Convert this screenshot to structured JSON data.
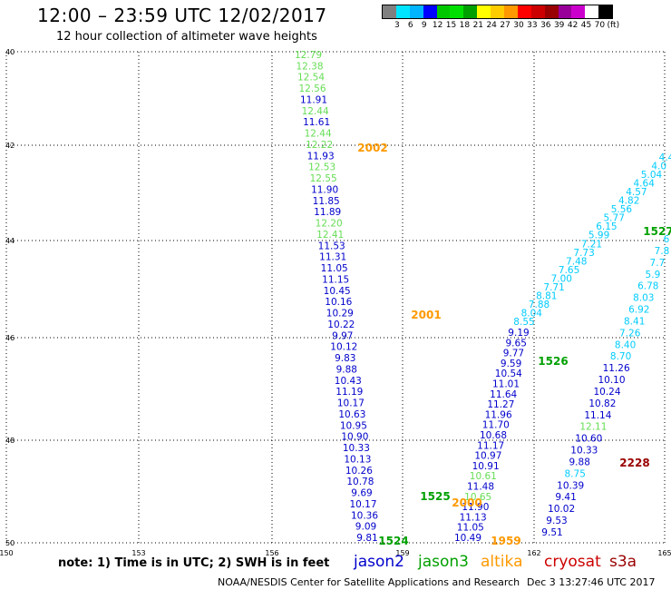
{
  "header": {
    "title": "12:00 – 23:59 UTC 12/02/2017",
    "subtitle": "12 hour collection of altimeter wave heights"
  },
  "colorbar": {
    "colors": [
      "#808080",
      "#00e5ff",
      "#00b4ff",
      "#0000ff",
      "#00c800",
      "#00e000",
      "#00a000",
      "#ffff00",
      "#ffcc00",
      "#ff9900",
      "#ff0000",
      "#cc0000",
      "#990000",
      "#990099",
      "#cc00cc",
      "#ffffff",
      "#000000"
    ],
    "labels": [
      "3",
      "6",
      "9",
      "12",
      "15",
      "18",
      "21",
      "24",
      "27",
      "30",
      "33",
      "36",
      "39",
      "42",
      "45",
      "70",
      "(ft)"
    ]
  },
  "map": {
    "lat_labels": [
      "40",
      "42",
      "44",
      "46",
      "48",
      "50"
    ],
    "lon_labels": [
      "150",
      "153",
      "156",
      "159",
      "162",
      "165"
    ],
    "colors": {
      "jason2": "#0000cc",
      "jason3": "#00a000",
      "altika": "#ff9900",
      "cryosat": "#cc0000",
      "s3a": "#990000",
      "light_green": "#66dd55",
      "cyan": "#00ccff",
      "blue": "#0000cc"
    },
    "tracks": [
      {
        "name": "track-2002",
        "points": [
          {
            "t": "12.79",
            "c": "light_green"
          },
          {
            "t": "12.38",
            "c": "light_green"
          },
          {
            "t": "12.54",
            "c": "light_green"
          },
          {
            "t": "12.56",
            "c": "light_green"
          },
          {
            "t": "11.91",
            "c": "blue"
          },
          {
            "t": "12.44",
            "c": "light_green"
          },
          {
            "t": "11.61",
            "c": "blue"
          },
          {
            "t": "12.44",
            "c": "light_green"
          },
          {
            "t": "12.22",
            "c": "light_green"
          },
          {
            "t": "11.93",
            "c": "blue"
          },
          {
            "t": "12.53",
            "c": "light_green"
          },
          {
            "t": "12.55",
            "c": "light_green"
          },
          {
            "t": "11.90",
            "c": "blue"
          },
          {
            "t": "11.85",
            "c": "blue"
          },
          {
            "t": "11.89",
            "c": "blue"
          },
          {
            "t": "12.20",
            "c": "light_green"
          },
          {
            "t": "12.41",
            "c": "light_green"
          },
          {
            "t": "11.53",
            "c": "blue"
          },
          {
            "t": "11.31",
            "c": "blue"
          },
          {
            "t": "11.05",
            "c": "blue"
          },
          {
            "t": "11.15",
            "c": "blue"
          },
          {
            "t": "10.45",
            "c": "blue"
          },
          {
            "t": "10.16",
            "c": "blue"
          },
          {
            "t": "10.29",
            "c": "blue"
          },
          {
            "t": "10.22",
            "c": "blue"
          },
          {
            "t": "9.97",
            "c": "blue"
          },
          {
            "t": "10.12",
            "c": "blue"
          },
          {
            "t": "9.83",
            "c": "blue"
          },
          {
            "t": "9.88",
            "c": "blue"
          },
          {
            "t": "10.43",
            "c": "blue"
          },
          {
            "t": "11.19",
            "c": "blue"
          },
          {
            "t": "10.17",
            "c": "blue"
          },
          {
            "t": "10.63",
            "c": "blue"
          },
          {
            "t": "10.95",
            "c": "blue"
          },
          {
            "t": "10.90",
            "c": "blue"
          },
          {
            "t": "10.33",
            "c": "blue"
          },
          {
            "t": "10.13",
            "c": "blue"
          },
          {
            "t": "10.26",
            "c": "blue"
          },
          {
            "t": "10.78",
            "c": "blue"
          },
          {
            "t": "9.69",
            "c": "blue"
          },
          {
            "t": "10.17",
            "c": "blue"
          },
          {
            "t": "10.36",
            "c": "blue"
          },
          {
            "t": "9.09",
            "c": "blue"
          },
          {
            "t": "9.81",
            "c": "blue"
          }
        ]
      },
      {
        "name": "track-1526",
        "points": [
          {
            "t": "9.19",
            "c": "blue"
          },
          {
            "t": "9.65",
            "c": "blue"
          },
          {
            "t": "9.77",
            "c": "blue"
          },
          {
            "t": "9.59",
            "c": "blue"
          },
          {
            "t": "10.54",
            "c": "blue"
          },
          {
            "t": "11.01",
            "c": "blue"
          },
          {
            "t": "11.64",
            "c": "blue"
          },
          {
            "t": "11.27",
            "c": "blue"
          },
          {
            "t": "11.96",
            "c": "blue"
          },
          {
            "t": "11.70",
            "c": "blue"
          },
          {
            "t": "10.68",
            "c": "blue"
          },
          {
            "t": "11.17",
            "c": "blue"
          },
          {
            "t": "10.97",
            "c": "blue"
          },
          {
            "t": "10.91",
            "c": "blue"
          },
          {
            "t": "10.61",
            "c": "light_green"
          },
          {
            "t": "11.48",
            "c": "blue"
          },
          {
            "t": "10.65",
            "c": "light_green"
          },
          {
            "t": "11.90",
            "c": "blue"
          },
          {
            "t": "11.13",
            "c": "blue"
          },
          {
            "t": "11.05",
            "c": "blue"
          },
          {
            "t": "10.49",
            "c": "blue"
          }
        ]
      },
      {
        "name": "track-cyan",
        "points": [
          {
            "t": "4.4",
            "c": "cyan"
          },
          {
            "t": "4.0",
            "c": "cyan"
          },
          {
            "t": "5.04",
            "c": "cyan"
          },
          {
            "t": "4.64",
            "c": "cyan"
          },
          {
            "t": "4.57",
            "c": "cyan"
          },
          {
            "t": "4.82",
            "c": "cyan"
          },
          {
            "t": "5.56",
            "c": "cyan"
          },
          {
            "t": "5.77",
            "c": "cyan"
          },
          {
            "t": "6.15",
            "c": "cyan"
          },
          {
            "t": "5.99",
            "c": "cyan"
          },
          {
            "t": "7.21",
            "c": "cyan"
          },
          {
            "t": "7.73",
            "c": "cyan"
          },
          {
            "t": "7.48",
            "c": "cyan"
          },
          {
            "t": "7.65",
            "c": "cyan"
          },
          {
            "t": "7.00",
            "c": "cyan"
          },
          {
            "t": "7.71",
            "c": "cyan"
          },
          {
            "t": "8.81",
            "c": "cyan"
          },
          {
            "t": "7.88",
            "c": "cyan"
          },
          {
            "t": "8.04",
            "c": "cyan"
          },
          {
            "t": "8.55",
            "c": "cyan"
          }
        ]
      },
      {
        "name": "track-1527",
        "points": [
          {
            "t": "6",
            "c": "cyan"
          },
          {
            "t": "7.8",
            "c": "cyan"
          },
          {
            "t": "7.7",
            "c": "cyan"
          },
          {
            "t": "5.9",
            "c": "cyan"
          },
          {
            "t": "6.78",
            "c": "cyan"
          },
          {
            "t": "8.03",
            "c": "cyan"
          },
          {
            "t": "6.92",
            "c": "cyan"
          },
          {
            "t": "8.41",
            "c": "cyan"
          },
          {
            "t": "7.26",
            "c": "cyan"
          },
          {
            "t": "8.40",
            "c": "cyan"
          },
          {
            "t": "8.70",
            "c": "cyan"
          },
          {
            "t": "11.26",
            "c": "blue"
          },
          {
            "t": "10.10",
            "c": "blue"
          },
          {
            "t": "10.24",
            "c": "blue"
          },
          {
            "t": "10.82",
            "c": "blue"
          },
          {
            "t": "11.14",
            "c": "blue"
          },
          {
            "t": "12.11",
            "c": "light_green"
          },
          {
            "t": "10.60",
            "c": "blue"
          },
          {
            "t": "10.33",
            "c": "blue"
          },
          {
            "t": "9.88",
            "c": "blue"
          },
          {
            "t": "8.75",
            "c": "cyan"
          },
          {
            "t": "10.39",
            "c": "blue"
          },
          {
            "t": "9.41",
            "c": "blue"
          },
          {
            "t": "10.02",
            "c": "blue"
          },
          {
            "t": "9.53",
            "c": "blue"
          },
          {
            "t": "9.51",
            "c": "blue"
          }
        ]
      }
    ],
    "time_labels": [
      {
        "t": "2002",
        "c": "altika"
      },
      {
        "t": "2001",
        "c": "altika"
      },
      {
        "t": "2000",
        "c": "altika"
      },
      {
        "t": "1959",
        "c": "altika"
      },
      {
        "t": "1526",
        "c": "jason3"
      },
      {
        "t": "1525",
        "c": "jason3"
      },
      {
        "t": "1524",
        "c": "jason3"
      },
      {
        "t": "1527",
        "c": "jason3"
      },
      {
        "t": "2228",
        "c": "s3a"
      }
    ]
  },
  "footer": {
    "note": "note: 1) Time is in UTC; 2) SWH is in feet",
    "satellites": [
      {
        "label": "jason2",
        "color": "#0000cc"
      },
      {
        "label": "jason3",
        "color": "#00a000"
      },
      {
        "label": "altika",
        "color": "#ff9900"
      },
      {
        "label": "cryosat",
        "color": "#cc0000"
      },
      {
        "label": "s3a",
        "color": "#990000"
      }
    ],
    "credit": "NOAA/NESDIS Center for Satellite Applications and Research",
    "timestamp": "Dec  3 13:27:46 UTC 2017"
  }
}
